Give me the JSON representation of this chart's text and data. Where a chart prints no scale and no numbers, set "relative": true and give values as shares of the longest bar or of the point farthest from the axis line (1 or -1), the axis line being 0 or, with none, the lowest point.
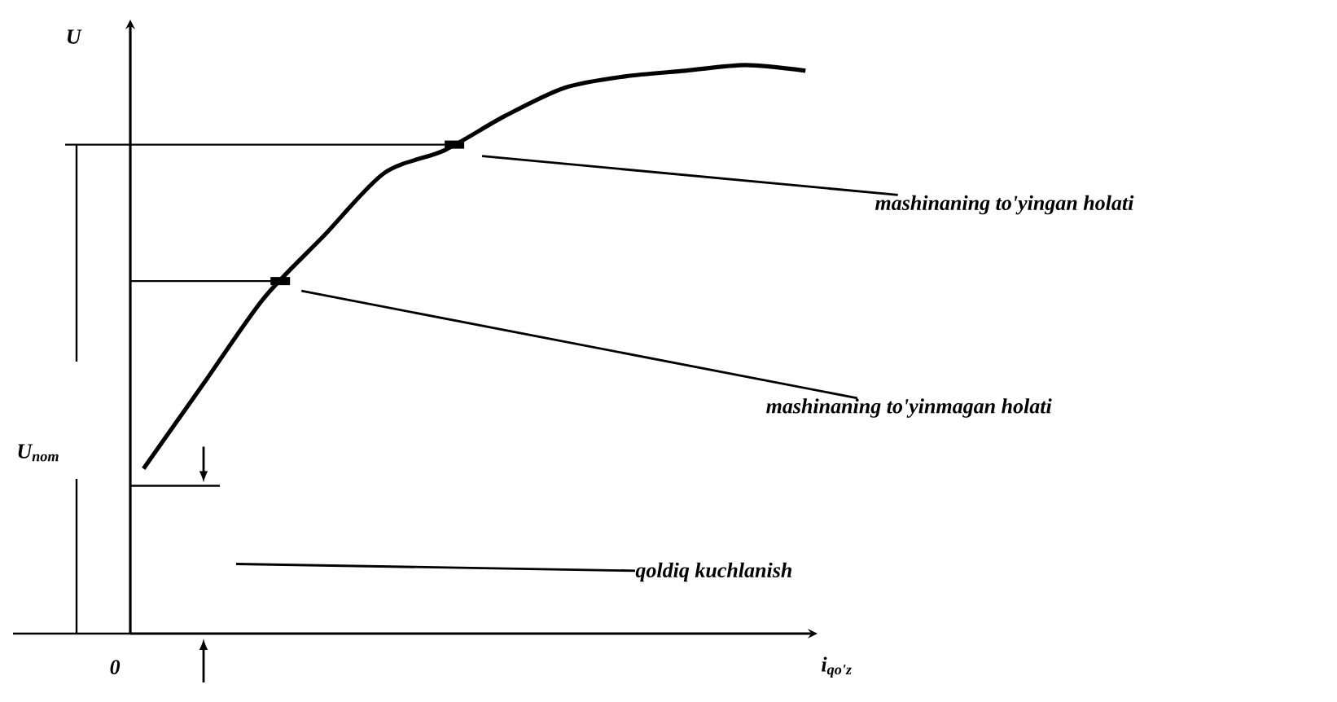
{
  "chart_data": {
    "type": "line",
    "relative": true,
    "ylabel": "U",
    "xlabel": "i$_{qo'z}$",
    "categories": [
      null,
      null,
      null,
      null,
      null,
      null,
      null,
      null,
      null,
      null,
      null,
      null
    ],
    "series": [
      {
        "color": "#000000",
        "values": [
          0.29,
          0.44,
          0.59,
          0.7,
          0.81,
          0.85,
          0.91,
          0.96,
          0.98,
          0.99,
          1.0,
          0.99
        ]
      }
    ],
    "ref_lines": [
      {
        "axis": "y",
        "value": 0.86
      },
      {
        "axis": "y",
        "value": 0.62
      },
      {
        "axis": "y",
        "value": 0.26
      }
    ],
    "annotations": [
      "mashinaning to'yingan holati",
      "mashinaning to'yinmagan holati",
      "qoldiq kuchlanish",
      "U$_{nom}$",
      "0"
    ]
  }
}
